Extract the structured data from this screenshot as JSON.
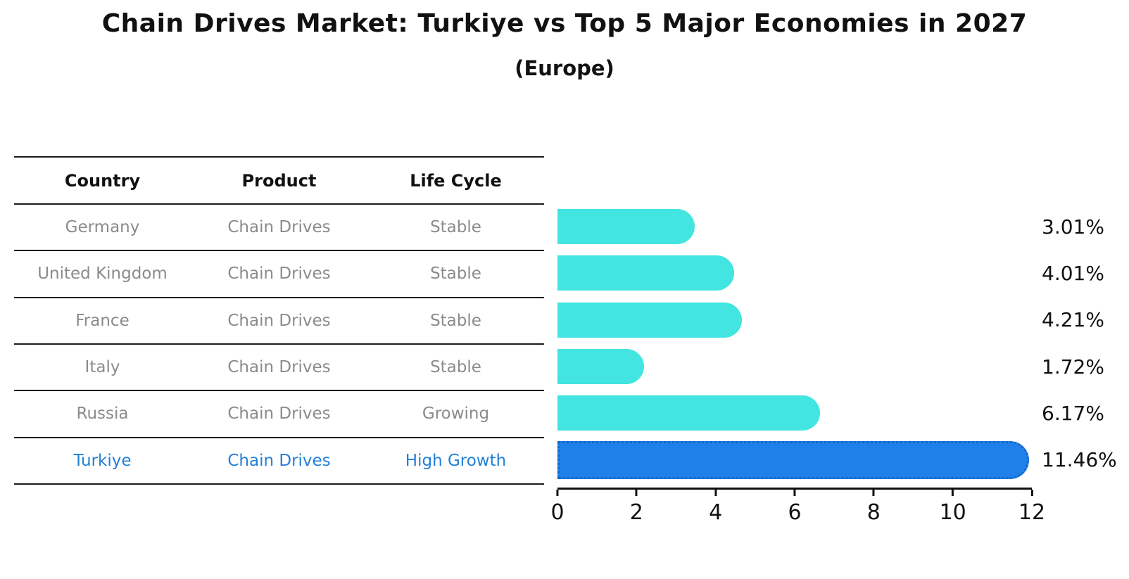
{
  "title": "Chain Drives Market: Turkiye vs Top 5 Major Economies in 2027",
  "subtitle": "(Europe)",
  "table": {
    "headers": {
      "country": "Country",
      "product": "Product",
      "life_cycle": "Life Cycle"
    },
    "rows": [
      {
        "country": "Germany",
        "product": "Chain Drives",
        "life_cycle": "Stable",
        "highlighted": false
      },
      {
        "country": "United Kingdom",
        "product": "Chain Drives",
        "life_cycle": "Stable",
        "highlighted": false
      },
      {
        "country": "France",
        "product": "Chain Drives",
        "life_cycle": "Stable",
        "highlighted": false
      },
      {
        "country": "Italy",
        "product": "Chain Drives",
        "life_cycle": "Stable",
        "highlighted": false
      },
      {
        "country": "Russia",
        "product": "Chain Drives",
        "life_cycle": "Growing",
        "highlighted": false
      },
      {
        "country": "Turkiye",
        "product": "Chain Drives",
        "life_cycle": "High Growth",
        "highlighted": true
      }
    ]
  },
  "chart_data": {
    "type": "bar",
    "orientation": "horizontal",
    "title": "Chain Drives Market: Turkiye vs Top 5 Major Economies in 2027 (Europe)",
    "categories": [
      "Germany",
      "United Kingdom",
      "France",
      "Italy",
      "Russia",
      "Turkiye"
    ],
    "values": [
      3.01,
      4.01,
      4.21,
      1.72,
      6.17,
      11.46
    ],
    "value_labels": [
      "3.01%",
      "4.01%",
      "4.21%",
      "1.72%",
      "6.17%",
      "11.46%"
    ],
    "xlabel": "",
    "ylabel": "",
    "xlim": [
      0,
      12
    ],
    "xticks": [
      0,
      2,
      4,
      6,
      8,
      10,
      12
    ],
    "grid": false,
    "legend": false,
    "highlight_category": "Turkiye"
  },
  "colors": {
    "bar_default": "#42e5e0",
    "bar_highlight": "#1e80e8",
    "bar_highlight_border": "#1565cd",
    "highlight_text": "#2380d8",
    "table_text": "#8b8b8b",
    "heading_text": "#111111"
  }
}
